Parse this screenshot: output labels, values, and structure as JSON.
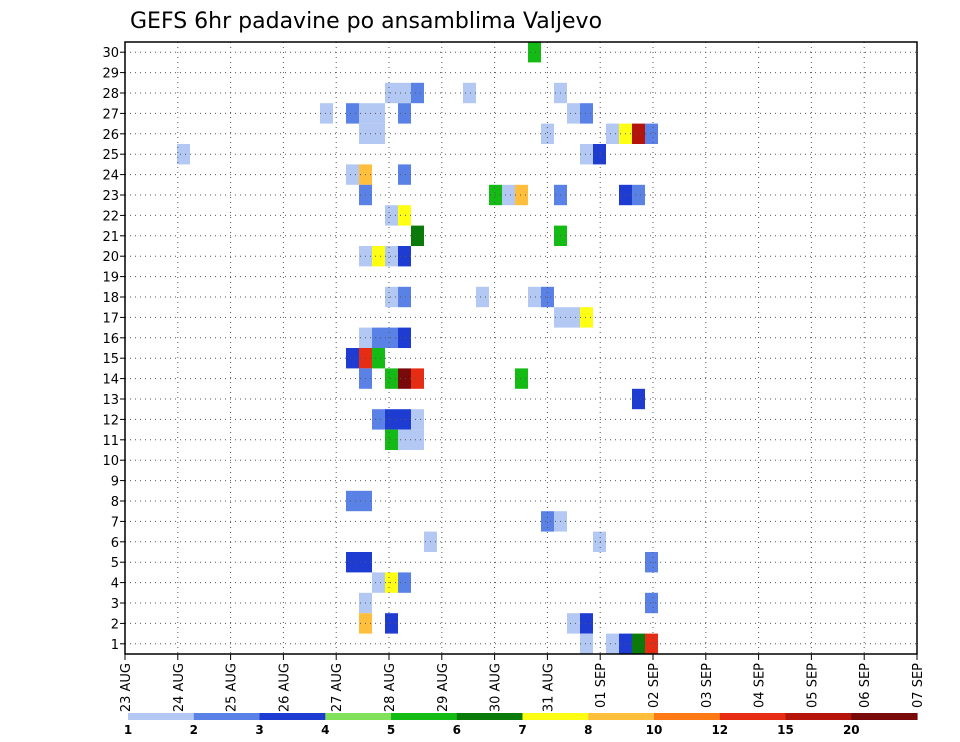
{
  "chart_data": {
    "type": "heatmap",
    "title": "GEFS 6hr padavine po ansamblima Valjevo",
    "xlabel": "",
    "ylabel": "",
    "x_ticks": [
      "23 AUG",
      "24 AUG",
      "25 AUG",
      "26 AUG",
      "27 AUG",
      "28 AUG",
      "29 AUG",
      "30 AUG",
      "31 AUG",
      "01 SEP",
      "02 SEP",
      "03 SEP",
      "04 SEP",
      "05 SEP",
      "06 SEP",
      "07 SEP"
    ],
    "y_ticks": [
      1,
      2,
      3,
      4,
      5,
      6,
      7,
      8,
      9,
      10,
      11,
      12,
      13,
      14,
      15,
      16,
      17,
      18,
      19,
      20,
      21,
      22,
      23,
      24,
      25,
      26,
      27,
      28,
      29,
      30
    ],
    "xlim": [
      0,
      60
    ],
    "ylim": [
      0.5,
      30.5
    ],
    "grid": true,
    "legend_position": "bottom",
    "color_scale": {
      "labels": [
        "1",
        "2",
        "3",
        "4",
        "5",
        "6",
        "7",
        "8",
        "10",
        "12",
        "15",
        "20"
      ],
      "colors": [
        "#b4c8f4",
        "#5a82e6",
        "#1e3cd2",
        "#82e15a",
        "#14bb14",
        "#0a7a0a",
        "#ffff14",
        "#ffbe3c",
        "#ff7a14",
        "#e62d14",
        "#b4140a",
        "#780a0a"
      ]
    },
    "cells": [
      {
        "member": 30,
        "t": 31,
        "v": 5
      },
      {
        "member": 28,
        "t": 20,
        "v": 1
      },
      {
        "member": 28,
        "t": 21,
        "v": 1
      },
      {
        "member": 28,
        "t": 22,
        "v": 2
      },
      {
        "member": 28,
        "t": 26,
        "v": 1
      },
      {
        "member": 28,
        "t": 33,
        "v": 1
      },
      {
        "member": 27,
        "t": 15,
        "v": 1
      },
      {
        "member": 27,
        "t": 17,
        "v": 2
      },
      {
        "member": 27,
        "t": 18,
        "v": 1
      },
      {
        "member": 27,
        "t": 19,
        "v": 1
      },
      {
        "member": 27,
        "t": 21,
        "v": 2
      },
      {
        "member": 27,
        "t": 34,
        "v": 1
      },
      {
        "member": 27,
        "t": 35,
        "v": 2
      },
      {
        "member": 26,
        "t": 18,
        "v": 1
      },
      {
        "member": 26,
        "t": 19,
        "v": 1
      },
      {
        "member": 26,
        "t": 32,
        "v": 1
      },
      {
        "member": 26,
        "t": 37,
        "v": 1
      },
      {
        "member": 26,
        "t": 38,
        "v": 7
      },
      {
        "member": 26,
        "t": 39,
        "v": 15
      },
      {
        "member": 26,
        "t": 40,
        "v": 2
      },
      {
        "member": 25,
        "t": 4,
        "v": 1
      },
      {
        "member": 25,
        "t": 35,
        "v": 1
      },
      {
        "member": 25,
        "t": 36,
        "v": 3
      },
      {
        "member": 24,
        "t": 17,
        "v": 1
      },
      {
        "member": 24,
        "t": 18,
        "v": 8
      },
      {
        "member": 24,
        "t": 21,
        "v": 2
      },
      {
        "member": 23,
        "t": 18,
        "v": 2
      },
      {
        "member": 23,
        "t": 28,
        "v": 5
      },
      {
        "member": 23,
        "t": 29,
        "v": 1
      },
      {
        "member": 23,
        "t": 30,
        "v": 8
      },
      {
        "member": 23,
        "t": 33,
        "v": 2
      },
      {
        "member": 23,
        "t": 38,
        "v": 3
      },
      {
        "member": 23,
        "t": 39,
        "v": 2
      },
      {
        "member": 22,
        "t": 20,
        "v": 1
      },
      {
        "member": 22,
        "t": 21,
        "v": 7
      },
      {
        "member": 21,
        "t": 22,
        "v": 6
      },
      {
        "member": 21,
        "t": 33,
        "v": 5
      },
      {
        "member": 20,
        "t": 18,
        "v": 1
      },
      {
        "member": 20,
        "t": 19,
        "v": 7
      },
      {
        "member": 20,
        "t": 20,
        "v": 1
      },
      {
        "member": 20,
        "t": 21,
        "v": 3
      },
      {
        "member": 18,
        "t": 20,
        "v": 1
      },
      {
        "member": 18,
        "t": 21,
        "v": 2
      },
      {
        "member": 18,
        "t": 27,
        "v": 1
      },
      {
        "member": 18,
        "t": 31,
        "v": 1
      },
      {
        "member": 18,
        "t": 32,
        "v": 2
      },
      {
        "member": 17,
        "t": 33,
        "v": 1
      },
      {
        "member": 17,
        "t": 34,
        "v": 1
      },
      {
        "member": 17,
        "t": 35,
        "v": 7
      },
      {
        "member": 16,
        "t": 18,
        "v": 1
      },
      {
        "member": 16,
        "t": 19,
        "v": 2
      },
      {
        "member": 16,
        "t": 20,
        "v": 2
      },
      {
        "member": 16,
        "t": 21,
        "v": 3
      },
      {
        "member": 15,
        "t": 17,
        "v": 3
      },
      {
        "member": 15,
        "t": 18,
        "v": 12
      },
      {
        "member": 15,
        "t": 19,
        "v": 5
      },
      {
        "member": 14,
        "t": 18,
        "v": 2
      },
      {
        "member": 14,
        "t": 20,
        "v": 5
      },
      {
        "member": 14,
        "t": 21,
        "v": 20
      },
      {
        "member": 14,
        "t": 22,
        "v": 12
      },
      {
        "member": 14,
        "t": 30,
        "v": 5
      },
      {
        "member": 13,
        "t": 39,
        "v": 3
      },
      {
        "member": 12,
        "t": 19,
        "v": 2
      },
      {
        "member": 12,
        "t": 20,
        "v": 3
      },
      {
        "member": 12,
        "t": 21,
        "v": 3
      },
      {
        "member": 12,
        "t": 22,
        "v": 1
      },
      {
        "member": 11,
        "t": 20,
        "v": 5
      },
      {
        "member": 11,
        "t": 21,
        "v": 1
      },
      {
        "member": 11,
        "t": 22,
        "v": 1
      },
      {
        "member": 8,
        "t": 17,
        "v": 2
      },
      {
        "member": 8,
        "t": 18,
        "v": 2
      },
      {
        "member": 7,
        "t": 32,
        "v": 2
      },
      {
        "member": 7,
        "t": 33,
        "v": 1
      },
      {
        "member": 6,
        "t": 23,
        "v": 1
      },
      {
        "member": 6,
        "t": 36,
        "v": 1
      },
      {
        "member": 5,
        "t": 17,
        "v": 3
      },
      {
        "member": 5,
        "t": 18,
        "v": 3
      },
      {
        "member": 5,
        "t": 40,
        "v": 2
      },
      {
        "member": 4,
        "t": 19,
        "v": 1
      },
      {
        "member": 4,
        "t": 20,
        "v": 7
      },
      {
        "member": 4,
        "t": 21,
        "v": 2
      },
      {
        "member": 3,
        "t": 18,
        "v": 1
      },
      {
        "member": 3,
        "t": 40,
        "v": 2
      },
      {
        "member": 2,
        "t": 18,
        "v": 8
      },
      {
        "member": 2,
        "t": 20,
        "v": 3
      },
      {
        "member": 2,
        "t": 34,
        "v": 1
      },
      {
        "member": 2,
        "t": 35,
        "v": 3
      },
      {
        "member": 1,
        "t": 35,
        "v": 1
      },
      {
        "member": 1,
        "t": 37,
        "v": 1
      },
      {
        "member": 1,
        "t": 38,
        "v": 3
      },
      {
        "member": 1,
        "t": 39,
        "v": 6
      },
      {
        "member": 1,
        "t": 40,
        "v": 12
      }
    ]
  }
}
